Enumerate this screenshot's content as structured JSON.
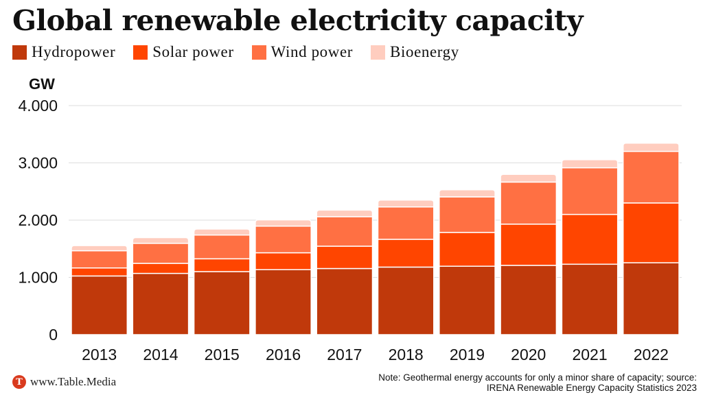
{
  "title": "Global renewable electricity capacity",
  "brand": {
    "logo_letter": "T",
    "label": "www.Table.Media"
  },
  "note_line1": "Note: Geothermal energy accounts for only a minor share of capacity; source:",
  "note_line2": "IRENA Renewable Energy Capacity Statistics 2023",
  "chart_data": {
    "type": "bar",
    "stacked": true,
    "title": "Global renewable electricity capacity",
    "ylabel": "GW",
    "xlabel": "",
    "ylim": [
      0,
      4000
    ],
    "yticks": [
      0,
      1000,
      2000,
      3000,
      4000
    ],
    "ytick_labels": [
      "0",
      "1.000",
      "2.000",
      "3.000",
      "4.000"
    ],
    "grid": true,
    "legend_position": "top-left",
    "categories": [
      "2013",
      "2014",
      "2015",
      "2016",
      "2017",
      "2018",
      "2019",
      "2020",
      "2021",
      "2022"
    ],
    "series": [
      {
        "name": "Hydropower",
        "color": "#c0390b",
        "values": [
          1025,
          1070,
          1100,
          1135,
          1155,
          1180,
          1195,
          1210,
          1230,
          1255
        ]
      },
      {
        "name": "Solar power",
        "color": "#ff4500",
        "values": [
          140,
          175,
          225,
          295,
          390,
          485,
          590,
          720,
          870,
          1045
        ]
      },
      {
        "name": "Wind power",
        "color": "#ff7043",
        "values": [
          300,
          350,
          415,
          465,
          515,
          565,
          620,
          735,
          815,
          900
        ]
      },
      {
        "name": "Bioenergy",
        "color": "#ffcdbf",
        "values": [
          90,
          100,
          105,
          110,
          115,
          120,
          125,
          135,
          140,
          145
        ]
      }
    ]
  }
}
